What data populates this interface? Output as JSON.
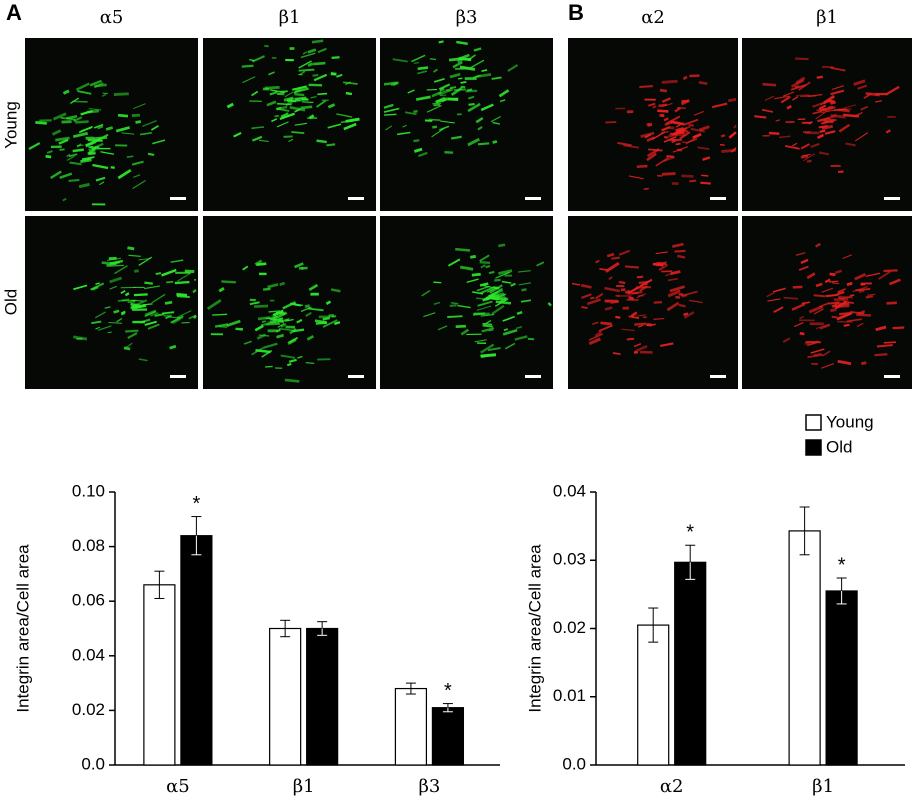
{
  "panels": {
    "rows": [
      "Young",
      "Old"
    ],
    "A": {
      "label": "A",
      "columns": [
        "α5",
        "β1",
        "β3"
      ],
      "color": "#2ee82e"
    },
    "B": {
      "label": "B",
      "columns": [
        "α2",
        "β1"
      ],
      "color": "#e82020"
    }
  },
  "chart_data": [
    {
      "type": "bar",
      "y_label": "Integrin area/Cell area",
      "categories": [
        "α5",
        "β1",
        "β3"
      ],
      "series": [
        {
          "color": "#ffffff",
          "values": [
            0.066,
            0.05,
            0.028
          ],
          "errors": [
            0.005,
            0.003,
            0.002
          ],
          "annotations": [
            null,
            null,
            null
          ]
        },
        {
          "color": "#000000",
          "values": [
            0.084,
            0.05,
            0.021
          ],
          "errors": [
            0.007,
            0.0025,
            0.0015
          ],
          "annotations": [
            "*",
            null,
            "*"
          ]
        }
      ],
      "ylim": [
        0,
        0.1
      ],
      "yticks": [
        {
          "value": 0,
          "label": "0.0"
        },
        0.02,
        0.04,
        0.06,
        0.08,
        {
          "value": 0.1,
          "label": "0.10"
        }
      ]
    },
    {
      "type": "bar",
      "y_label": "Integrin area/Cell area",
      "categories": [
        "α2",
        "β1"
      ],
      "series": [
        {
          "name": "Young",
          "color": "#ffffff",
          "values": [
            0.0205,
            0.0343
          ],
          "errors": [
            0.0025,
            0.0035
          ],
          "annotations": [
            null,
            null
          ]
        },
        {
          "name": "Old",
          "color": "#000000",
          "values": [
            0.0297,
            0.0255
          ],
          "errors": [
            0.0025,
            0.0019
          ],
          "annotations": [
            "*",
            "*"
          ]
        }
      ],
      "ylim": [
        0,
        0.04
      ],
      "yticks": [
        {
          "value": 0,
          "label": "0.0"
        },
        0.01,
        0.02,
        0.03,
        0.04
      ],
      "legend": "top-right"
    }
  ]
}
